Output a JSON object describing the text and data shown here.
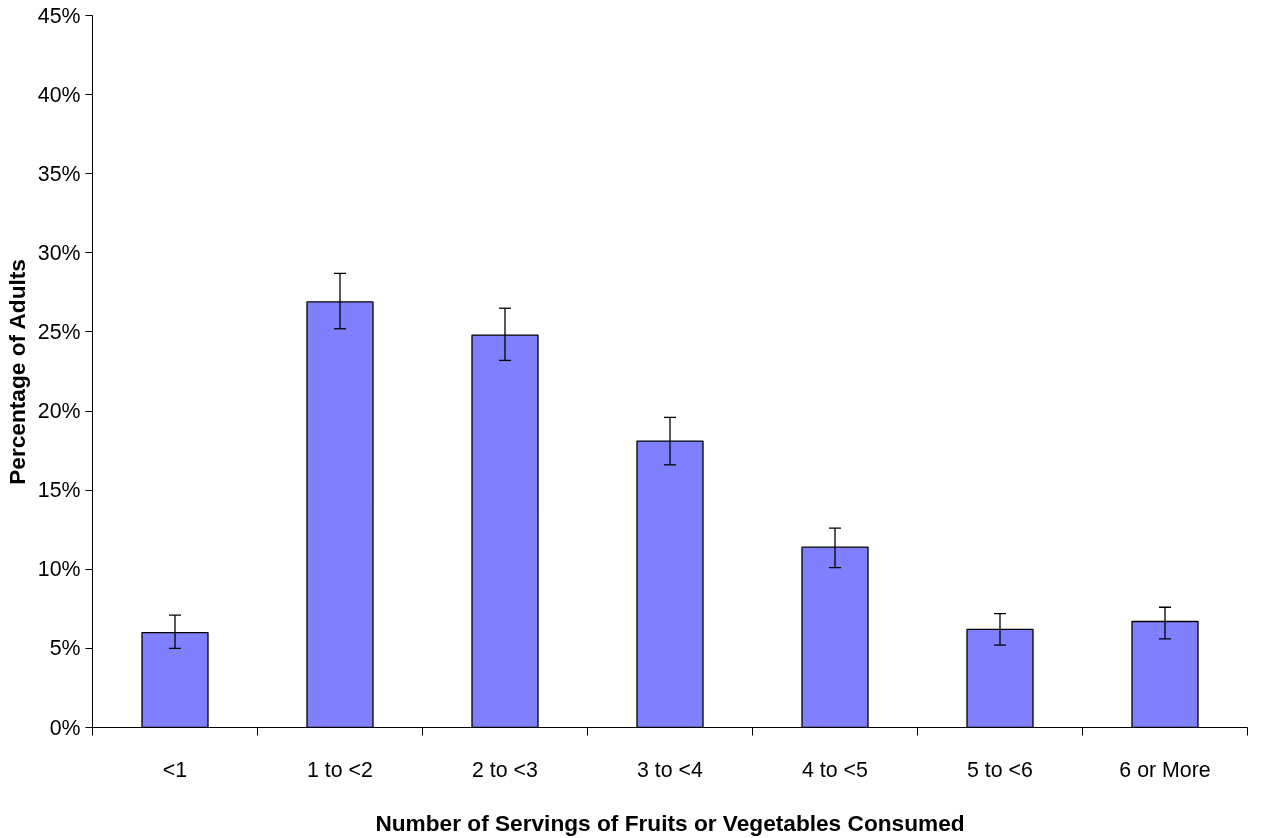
{
  "chart_data": {
    "type": "bar",
    "xlabel": "Number of Servings of Fruits or Vegetables Consumed",
    "ylabel": "Percentage of Adults",
    "categories": [
      "<1",
      "1 to <2",
      "2 to <3",
      "3 to <4",
      "4 to <5",
      "5 to <6",
      "6 or More"
    ],
    "values": [
      6.0,
      26.9,
      24.8,
      18.1,
      11.4,
      6.2,
      6.7
    ],
    "errors": [
      [
        5.0,
        7.1
      ],
      [
        25.2,
        28.7
      ],
      [
        23.2,
        26.5
      ],
      [
        16.6,
        19.6
      ],
      [
        10.1,
        12.6
      ],
      [
        5.2,
        7.2
      ],
      [
        5.6,
        7.6
      ]
    ],
    "color": "#8080ff",
    "ylim": [
      0,
      45
    ],
    "yticks": [
      {
        "value": 0,
        "label": "0%"
      },
      {
        "value": 5,
        "label": "5%"
      },
      {
        "value": 10,
        "label": "10%"
      },
      {
        "value": 15,
        "label": "15%"
      },
      {
        "value": 20,
        "label": "20%"
      },
      {
        "value": 25,
        "label": "25%"
      },
      {
        "value": 30,
        "label": "30%"
      },
      {
        "value": 35,
        "label": "35%"
      },
      {
        "value": 40,
        "label": "40%"
      },
      {
        "value": 45,
        "label": "45%"
      }
    ],
    "grid": false
  }
}
